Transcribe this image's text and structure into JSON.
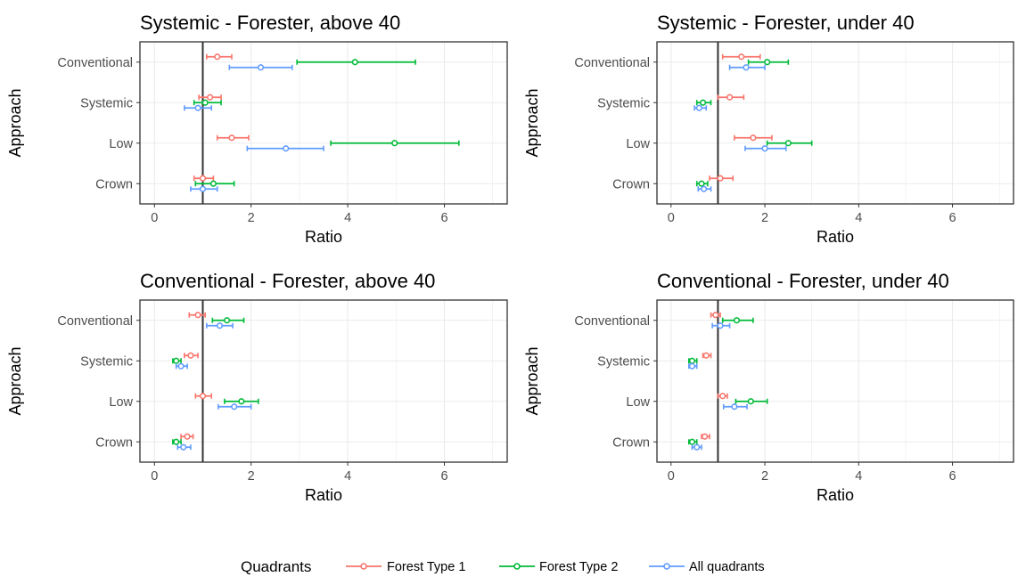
{
  "chart_data": [
    {
      "type": "errorbar",
      "title": "Systemic - Forester, above 40",
      "xlabel": "Ratio",
      "ylabel": "Approach",
      "categories": [
        "Conventional",
        "Systemic",
        "Low",
        "Crown"
      ],
      "xlim": [
        -0.3,
        7.3
      ],
      "xticks": [
        0,
        2,
        4,
        6
      ],
      "reference_line": 1,
      "series": [
        {
          "name": "Forest Type 1",
          "points": [
            {
              "category": "Conventional",
              "est": 1.3,
              "lo": 1.08,
              "hi": 1.6
            },
            {
              "category": "Systemic",
              "est": 1.15,
              "lo": 0.92,
              "hi": 1.38
            },
            {
              "category": "Low",
              "est": 1.6,
              "lo": 1.3,
              "hi": 1.95
            },
            {
              "category": "Crown",
              "est": 1.0,
              "lo": 0.82,
              "hi": 1.22
            }
          ]
        },
        {
          "name": "Forest Type 2",
          "points": [
            {
              "category": "Conventional",
              "est": 4.15,
              "lo": 2.95,
              "hi": 5.4
            },
            {
              "category": "Systemic",
              "est": 1.05,
              "lo": 0.82,
              "hi": 1.38
            },
            {
              "category": "Low",
              "est": 4.97,
              "lo": 3.65,
              "hi": 6.3
            },
            {
              "category": "Crown",
              "est": 1.22,
              "lo": 0.85,
              "hi": 1.65
            }
          ]
        },
        {
          "name": "All quadrants",
          "points": [
            {
              "category": "Conventional",
              "est": 2.2,
              "lo": 1.55,
              "hi": 2.85
            },
            {
              "category": "Systemic",
              "est": 0.9,
              "lo": 0.62,
              "hi": 1.18
            },
            {
              "category": "Low",
              "est": 2.72,
              "lo": 1.92,
              "hi": 3.5
            },
            {
              "category": "Crown",
              "est": 1.0,
              "lo": 0.75,
              "hi": 1.3
            }
          ]
        }
      ]
    },
    {
      "type": "errorbar",
      "title": "Systemic - Forester, under 40",
      "xlabel": "Ratio",
      "ylabel": "Approach",
      "categories": [
        "Conventional",
        "Systemic",
        "Low",
        "Crown"
      ],
      "xlim": [
        -0.3,
        7.3
      ],
      "xticks": [
        0,
        2,
        4,
        6
      ],
      "reference_line": 1,
      "series": [
        {
          "name": "Forest Type 1",
          "points": [
            {
              "category": "Conventional",
              "est": 1.5,
              "lo": 1.1,
              "hi": 1.9
            },
            {
              "category": "Systemic",
              "est": 1.25,
              "lo": 1.0,
              "hi": 1.55
            },
            {
              "category": "Low",
              "est": 1.75,
              "lo": 1.35,
              "hi": 2.15
            },
            {
              "category": "Crown",
              "est": 1.05,
              "lo": 0.82,
              "hi": 1.32
            }
          ]
        },
        {
          "name": "Forest Type 2",
          "points": [
            {
              "category": "Conventional",
              "est": 2.05,
              "lo": 1.65,
              "hi": 2.5
            },
            {
              "category": "Systemic",
              "est": 0.68,
              "lo": 0.55,
              "hi": 0.85
            },
            {
              "category": "Low",
              "est": 2.5,
              "lo": 2.05,
              "hi": 3.0
            },
            {
              "category": "Crown",
              "est": 0.65,
              "lo": 0.55,
              "hi": 0.78
            }
          ]
        },
        {
          "name": "All quadrants",
          "points": [
            {
              "category": "Conventional",
              "est": 1.6,
              "lo": 1.25,
              "hi": 2.0
            },
            {
              "category": "Systemic",
              "est": 0.6,
              "lo": 0.5,
              "hi": 0.75
            },
            {
              "category": "Low",
              "est": 2.0,
              "lo": 1.58,
              "hi": 2.45
            },
            {
              "category": "Crown",
              "est": 0.7,
              "lo": 0.58,
              "hi": 0.85
            }
          ]
        }
      ]
    },
    {
      "type": "errorbar",
      "title": "Conventional - Forester, above 40",
      "xlabel": "Ratio",
      "ylabel": "Approach",
      "categories": [
        "Conventional",
        "Systemic",
        "Low",
        "Crown"
      ],
      "xlim": [
        -0.3,
        7.3
      ],
      "xticks": [
        0,
        2,
        4,
        6
      ],
      "reference_line": 1,
      "series": [
        {
          "name": "Forest Type 1",
          "points": [
            {
              "category": "Conventional",
              "est": 0.9,
              "lo": 0.72,
              "hi": 1.05
            },
            {
              "category": "Systemic",
              "est": 0.75,
              "lo": 0.62,
              "hi": 0.9
            },
            {
              "category": "Low",
              "est": 1.0,
              "lo": 0.85,
              "hi": 1.18
            },
            {
              "category": "Crown",
              "est": 0.68,
              "lo": 0.55,
              "hi": 0.8
            }
          ]
        },
        {
          "name": "Forest Type 2",
          "points": [
            {
              "category": "Conventional",
              "est": 1.5,
              "lo": 1.2,
              "hi": 1.85
            },
            {
              "category": "Systemic",
              "est": 0.45,
              "lo": 0.38,
              "hi": 0.55
            },
            {
              "category": "Low",
              "est": 1.8,
              "lo": 1.45,
              "hi": 2.15
            },
            {
              "category": "Crown",
              "est": 0.45,
              "lo": 0.38,
              "hi": 0.55
            }
          ]
        },
        {
          "name": "All quadrants",
          "points": [
            {
              "category": "Conventional",
              "est": 1.35,
              "lo": 1.08,
              "hi": 1.62
            },
            {
              "category": "Systemic",
              "est": 0.55,
              "lo": 0.45,
              "hi": 0.68
            },
            {
              "category": "Low",
              "est": 1.65,
              "lo": 1.32,
              "hi": 2.0
            },
            {
              "category": "Crown",
              "est": 0.6,
              "lo": 0.48,
              "hi": 0.75
            }
          ]
        }
      ]
    },
    {
      "type": "errorbar",
      "title": "Conventional - Forester, under 40",
      "xlabel": "Ratio",
      "ylabel": "Approach",
      "categories": [
        "Conventional",
        "Systemic",
        "Low",
        "Crown"
      ],
      "xlim": [
        -0.3,
        7.3
      ],
      "xticks": [
        0,
        2,
        4,
        6
      ],
      "reference_line": 1,
      "series": [
        {
          "name": "Forest Type 1",
          "points": [
            {
              "category": "Conventional",
              "est": 0.95,
              "lo": 0.85,
              "hi": 1.05
            },
            {
              "category": "Systemic",
              "est": 0.75,
              "lo": 0.68,
              "hi": 0.85
            },
            {
              "category": "Low",
              "est": 1.1,
              "lo": 1.0,
              "hi": 1.2
            },
            {
              "category": "Crown",
              "est": 0.72,
              "lo": 0.65,
              "hi": 0.82
            }
          ]
        },
        {
          "name": "Forest Type 2",
          "points": [
            {
              "category": "Conventional",
              "est": 1.4,
              "lo": 1.1,
              "hi": 1.75
            },
            {
              "category": "Systemic",
              "est": 0.45,
              "lo": 0.38,
              "hi": 0.55
            },
            {
              "category": "Low",
              "est": 1.7,
              "lo": 1.38,
              "hi": 2.05
            },
            {
              "category": "Crown",
              "est": 0.45,
              "lo": 0.38,
              "hi": 0.55
            }
          ]
        },
        {
          "name": "All quadrants",
          "points": [
            {
              "category": "Conventional",
              "est": 1.05,
              "lo": 0.88,
              "hi": 1.25
            },
            {
              "category": "Systemic",
              "est": 0.45,
              "lo": 0.38,
              "hi": 0.55
            },
            {
              "category": "Low",
              "est": 1.35,
              "lo": 1.12,
              "hi": 1.62
            },
            {
              "category": "Crown",
              "est": 0.55,
              "lo": 0.45,
              "hi": 0.65
            }
          ]
        }
      ]
    }
  ],
  "legend": {
    "title": "Quadrants",
    "placement": "bottom",
    "items": [
      {
        "label": "Forest Type 1",
        "color": "#f8766d"
      },
      {
        "label": "Forest Type 2",
        "color": "#00ba38"
      },
      {
        "label": "All quadrants",
        "color": "#619cff"
      }
    ]
  },
  "colors": {
    "Forest Type 1": "#f8766d",
    "Forest Type 2": "#00ba38",
    "All quadrants": "#619cff",
    "grid": "#ebebeb",
    "panel_border": "#333333",
    "reference_line": "#333333"
  }
}
